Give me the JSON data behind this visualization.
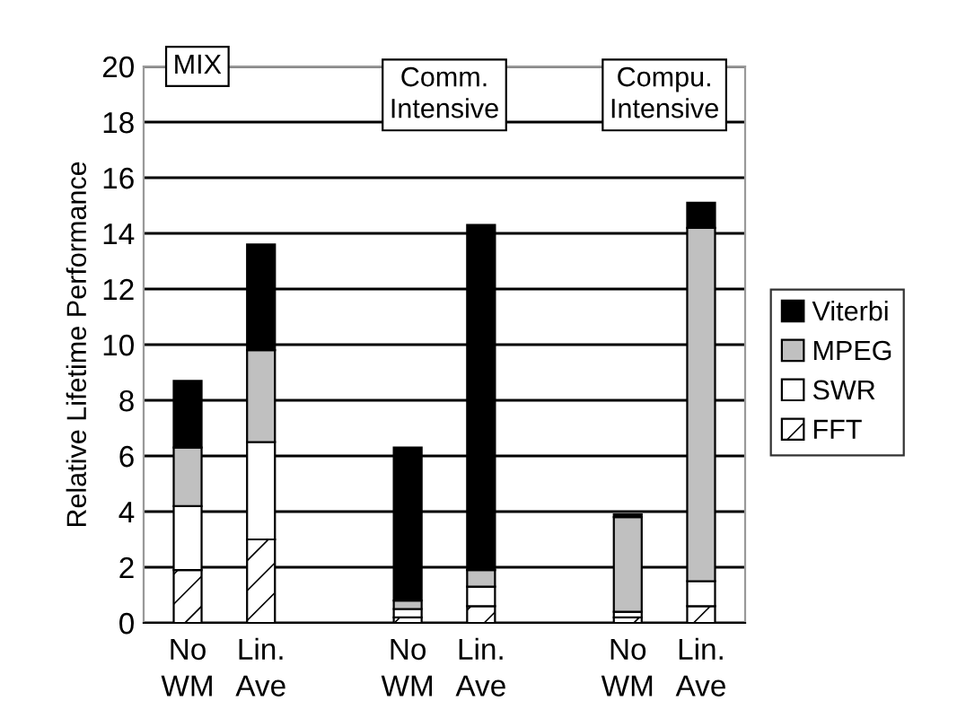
{
  "chart_data": {
    "type": "bar",
    "stacked": true,
    "ylabel": "Relative Lifetime Performance",
    "categories": [
      "No\nWM",
      "Lin.\nAve",
      null,
      "No\nWM",
      "Lin.\nAve",
      null,
      "No\nWM",
      "Lin.\nAve"
    ],
    "series": [
      {
        "name": "FFT",
        "color": "#ffffff",
        "values": [
          1.9,
          3.0,
          null,
          0.2,
          0.6,
          null,
          0.2,
          0.6
        ]
      },
      {
        "name": "SWR",
        "color": "#ffffff",
        "values": [
          2.3,
          3.5,
          null,
          0.3,
          0.7,
          null,
          0.2,
          0.9
        ]
      },
      {
        "name": "MPEG",
        "color": "#c0c0c0",
        "values": [
          2.1,
          3.3,
          null,
          0.3,
          0.6,
          null,
          3.4,
          12.7
        ]
      },
      {
        "name": "Viterbi",
        "color": "#000000",
        "values": [
          2.4,
          3.8,
          null,
          5.5,
          12.4,
          null,
          0.1,
          0.9
        ]
      }
    ],
    "ylim": [
      0,
      20
    ],
    "yticks": [
      0,
      2,
      4,
      6,
      8,
      10,
      12,
      14,
      16,
      18,
      20
    ],
    "grid": "y",
    "legend": "right",
    "annotations": [
      "MIX",
      "Comm.\nIntensive",
      "Compu.\nIntensive"
    ]
  }
}
